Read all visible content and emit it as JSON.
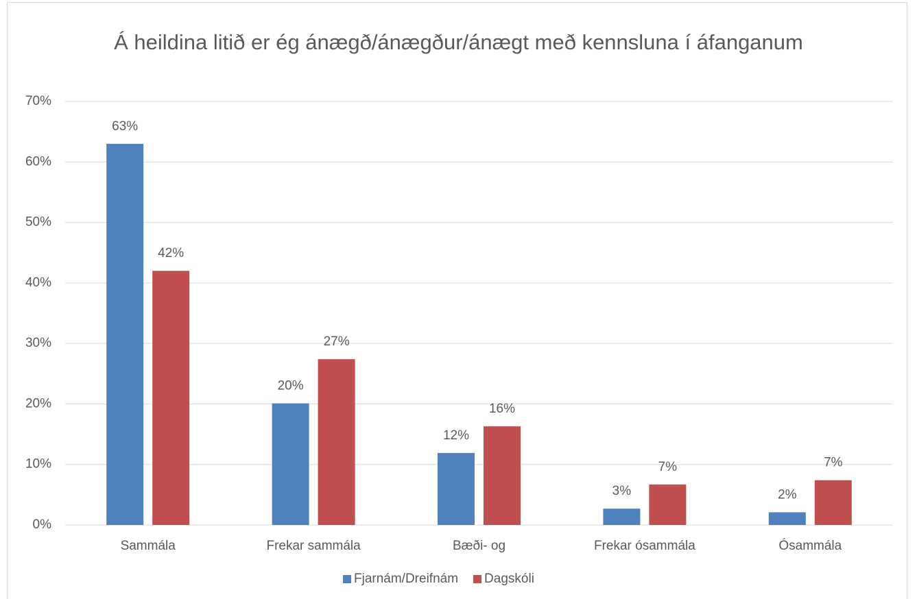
{
  "chart_data": {
    "type": "bar",
    "title": "Á heildina litið er ég ánægð/ánægður/ánægt með kennsluna í áfanganum",
    "categories": [
      "Sammála",
      "Frekar sammála",
      "Bæði- og",
      "Frekar ósammála",
      "Ósammála"
    ],
    "series": [
      {
        "name": "Fjarnám/Dreifnám",
        "color": "#4f81bd",
        "values": [
          63,
          20.1,
          11.9,
          2.7,
          2.1
        ],
        "value_labels": [
          "63%",
          "20%",
          "12%",
          "3%",
          "2%"
        ]
      },
      {
        "name": "Dagskóli",
        "color": "#c0504d",
        "values": [
          42,
          27.4,
          16.3,
          6.7,
          7.4
        ],
        "value_labels": [
          "42%",
          "27%",
          "16%",
          "7%",
          "7%"
        ]
      }
    ],
    "ylim": [
      0,
      70
    ],
    "yticks": [
      {
        "value": 0,
        "label": "0%"
      },
      {
        "value": 10,
        "label": "10%"
      },
      {
        "value": 20,
        "label": "20%"
      },
      {
        "value": 30,
        "label": "30%"
      },
      {
        "value": 40,
        "label": "40%"
      },
      {
        "value": 50,
        "label": "50%"
      },
      {
        "value": 60,
        "label": "60%"
      },
      {
        "value": 70,
        "label": "70%"
      }
    ],
    "grid": true,
    "legend": "bottom"
  }
}
